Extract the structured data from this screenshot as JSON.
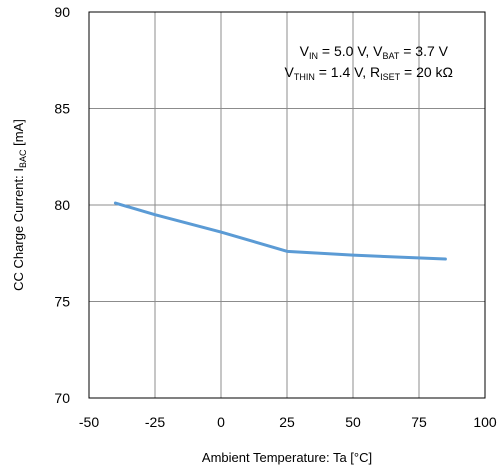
{
  "chart_data": {
    "type": "line",
    "xlabel": "Ambient Temperature: Ta [°C]",
    "ylabel": {
      "main": "CC Charge Current: I",
      "sub": "BAC",
      "unit": " [mA]"
    },
    "xlim": [
      -50,
      100
    ],
    "ylim": [
      70,
      90
    ],
    "xticks": [
      "-50",
      "-25",
      "0",
      "25",
      "50",
      "75",
      "100"
    ],
    "yticks": [
      "70",
      "75",
      "80",
      "85",
      "90"
    ],
    "grid": true,
    "line_color": "#5b9bd5",
    "annotation": {
      "line1": [
        {
          "t": "V",
          "sub": false
        },
        {
          "t": "IN",
          "sub": true
        },
        {
          "t": " = 5.0 V, V",
          "sub": false
        },
        {
          "t": "BAT",
          "sub": true
        },
        {
          "t": " = 3.7 V",
          "sub": false
        }
      ],
      "line2": [
        {
          "t": "V",
          "sub": false
        },
        {
          "t": "THIN",
          "sub": true
        },
        {
          "t": " = 1.4 V, R",
          "sub": false
        },
        {
          "t": "ISET",
          "sub": true
        },
        {
          "t": " = 20 kΩ",
          "sub": false
        }
      ]
    },
    "series": [
      {
        "x": [
          -40,
          -25,
          0,
          25,
          50,
          85
        ],
        "y": [
          80.1,
          79.5,
          78.6,
          77.6,
          77.4,
          77.2
        ]
      }
    ]
  }
}
